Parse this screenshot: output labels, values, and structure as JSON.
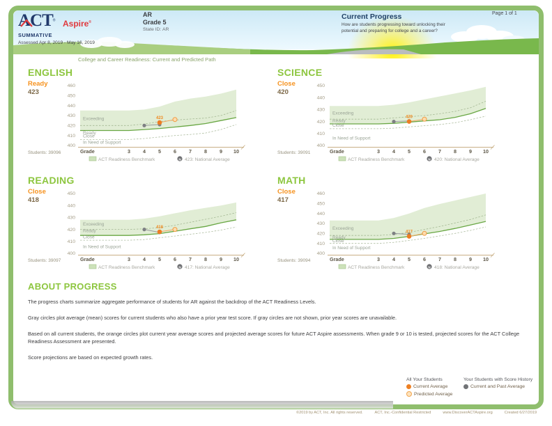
{
  "header": {
    "brand": "ACT",
    "brand_sub": "Aspire",
    "report_type": "SUMMATIVE",
    "assessed": "Assessed Apr 8, 2019 - May 16, 2019",
    "state": "AR",
    "grade": "Grade 5",
    "state_id": "State ID: AR",
    "section_title": "Current Progress",
    "section_subtitle": "How are students progressing toward unlocking their potential and preparing for college and a career?",
    "page": "Page 1 of 1"
  },
  "charts_title": "College and Career Readiness: Current and Predicted Path",
  "colors": {
    "heading_green": "#8dc63f",
    "level_orange": "#f6921e",
    "score_brown": "#7c6847",
    "band_green": "#e1edd5",
    "benchmark_line_green": "#69a744",
    "current_orange": "#ed7d23",
    "predicted_fill": "#fcdcae",
    "prior_gray": "#7e8083",
    "frame_green": "#8fbe6d",
    "navy": "#21396b",
    "logo_red": "#e03a3e"
  },
  "chart_data": [
    {
      "type": "line",
      "subject": "ENGLISH",
      "level": "Ready",
      "score": "423",
      "students": "Students: 39096",
      "xlabel": "Grade",
      "grades": [
        "3",
        "4",
        "5",
        "6",
        "7",
        "8",
        "9",
        "10"
      ],
      "ylim": [
        400,
        460
      ],
      "zones": [
        [
          "Exceeding",
          427
        ],
        [
          "Ready",
          412.5
        ],
        [
          "Close",
          409.5
        ],
        [
          "In Need of Support",
          403
        ]
      ],
      "band_top": [
        435,
        435,
        436,
        439,
        444,
        447,
        449,
        452,
        456
      ],
      "exceeding_boundary": [
        420,
        420,
        421.5,
        424,
        425.5,
        426.5,
        427.5,
        430,
        435
      ],
      "benchmark_line": [
        415,
        415,
        416,
        417,
        418.5,
        420,
        422,
        425,
        428
      ],
      "close_boundary": [
        406,
        406,
        407,
        408.5,
        410,
        411,
        412.5,
        416,
        421
      ],
      "prior_series": {
        "grades": [
          4,
          5
        ],
        "values": [
          420,
          421
        ]
      },
      "current_point": {
        "grade": 5,
        "value": 423,
        "label": "423"
      },
      "predicted_point": {
        "grade": 6,
        "value": 426
      },
      "legend_benchmark": "ACT Readiness Benchmark",
      "legend_national": "423: National Average"
    },
    {
      "type": "line",
      "subject": "SCIENCE",
      "level": "Close",
      "score": "420",
      "students": "Students: 39091",
      "xlabel": "Grade",
      "grades": [
        "3",
        "4",
        "5",
        "6",
        "7",
        "8",
        "9",
        "10"
      ],
      "ylim": [
        400,
        450
      ],
      "zones": [
        [
          "Exceeding",
          427
        ],
        [
          "Ready",
          420.5
        ],
        [
          "Close",
          417
        ],
        [
          "In Need of Support",
          406
        ]
      ],
      "band_top": [
        433,
        433,
        434,
        436,
        438.5,
        441,
        443.5,
        446,
        449
      ],
      "exceeding_boundary": [
        422,
        422,
        423,
        424,
        425,
        426.5,
        428.5,
        431.5,
        437
      ],
      "benchmark_line": [
        418,
        418,
        418.5,
        419.5,
        420.5,
        421.5,
        423.5,
        426.5,
        431
      ],
      "close_boundary": [
        414,
        414,
        414.5,
        415.5,
        416.5,
        417.5,
        419,
        421.5,
        424.5
      ],
      "prior_series": {
        "grades": [
          4,
          5
        ],
        "values": [
          420,
          420.5
        ]
      },
      "current_point": {
        "grade": 5,
        "value": 420,
        "label": "420"
      },
      "predicted_point": {
        "grade": 6,
        "value": 422
      },
      "legend_benchmark": "ACT Readiness Benchmark",
      "legend_national": "420: National Average"
    },
    {
      "type": "line",
      "subject": "READING",
      "level": "Close",
      "score": "418",
      "students": "Students: 39097",
      "xlabel": "Grade",
      "grades": [
        "3",
        "4",
        "5",
        "6",
        "7",
        "8",
        "9",
        "10"
      ],
      "ylim": [
        400,
        450
      ],
      "zones": [
        [
          "Exceeding",
          424.5
        ],
        [
          "Ready",
          419
        ],
        [
          "Close",
          413.8
        ],
        [
          "In Need of Support",
          405.5
        ]
      ],
      "band_top": [
        428,
        428,
        429,
        431,
        433.5,
        436,
        438,
        440,
        442.5
      ],
      "exceeding_boundary": [
        420,
        420,
        420.5,
        421.5,
        423.5,
        426,
        428.5,
        431,
        434
      ],
      "benchmark_line": [
        415,
        415,
        415.5,
        416.5,
        418.5,
        420.5,
        422.5,
        425.5,
        428
      ],
      "close_boundary": [
        411,
        411,
        411.5,
        413,
        414.5,
        416,
        417.5,
        419.5,
        422
      ],
      "prior_series": {
        "grades": [
          4,
          5
        ],
        "values": [
          420,
          417.5
        ]
      },
      "current_point": {
        "grade": 5,
        "value": 418,
        "label": "418"
      },
      "predicted_point": {
        "grade": 6,
        "value": 420
      },
      "legend_benchmark": "ACT Readiness Benchmark",
      "legend_national": "417: National Average"
    },
    {
      "type": "line",
      "subject": "MATH",
      "level": "Close",
      "score": "417",
      "students": "Students: 39094",
      "xlabel": "Grade",
      "grades": [
        "3",
        "4",
        "5",
        "6",
        "7",
        "8",
        "9",
        "10"
      ],
      "ylim": [
        400,
        460
      ],
      "zones": [
        [
          "Exceeding",
          425
        ],
        [
          "Ready",
          416
        ],
        [
          "Close",
          412.5
        ],
        [
          "In Need of Support",
          405.5
        ]
      ],
      "band_top": [
        433,
        433,
        435.5,
        440,
        445.5,
        449.5,
        453,
        456.5,
        460
      ],
      "exceeding_boundary": [
        418,
        418,
        419,
        421,
        424,
        427,
        430.5,
        434,
        438.5
      ],
      "benchmark_line": [
        414,
        414,
        415,
        417,
        419.5,
        422,
        425,
        428.5,
        432
      ],
      "close_boundary": [
        410,
        410,
        411,
        413,
        415,
        417.5,
        420,
        423,
        426.5
      ],
      "prior_series": {
        "grades": [
          4,
          5
        ],
        "values": [
          420,
          419
        ]
      },
      "current_point": {
        "grade": 5,
        "value": 417,
        "label": "417"
      },
      "predicted_point": {
        "grade": 6,
        "value": 420
      },
      "legend_benchmark": "ACT Readiness Benchmark",
      "legend_national": "418: National Average"
    }
  ],
  "about": {
    "heading": "ABOUT PROGRESS",
    "p1": "The progress charts summarize aggregate performance of students for AR against the backdrop of the ACT Readiness Levels.",
    "p2": "Gray circles plot average (mean) scores for current students who also have a prior year test score. If gray circles are not shown, prior year scores are unavailable.",
    "p3": "Based on all current students, the orange circles plot current year average scores and projected average scores for future ACT Aspire assessments. When grade 9 or 10 is tested, projected scores for the ACT College Readiness Assessment are presented.",
    "p4": "Score projections are based on expected growth rates."
  },
  "bottom_legend": {
    "col1_header": "All Your Students",
    "current_average": "Current Average",
    "predicted_average": "Predicted Average",
    "col2_header": "Your Students with Score History",
    "current_past_average": "Current and Past Average"
  },
  "footer": [
    "©2019 by ACT, Inc. All rights reserved.",
    "ACT, Inc.-Confidential Restricted",
    "www.DiscoverACTAspire.org",
    "Created 6/27/2019"
  ]
}
